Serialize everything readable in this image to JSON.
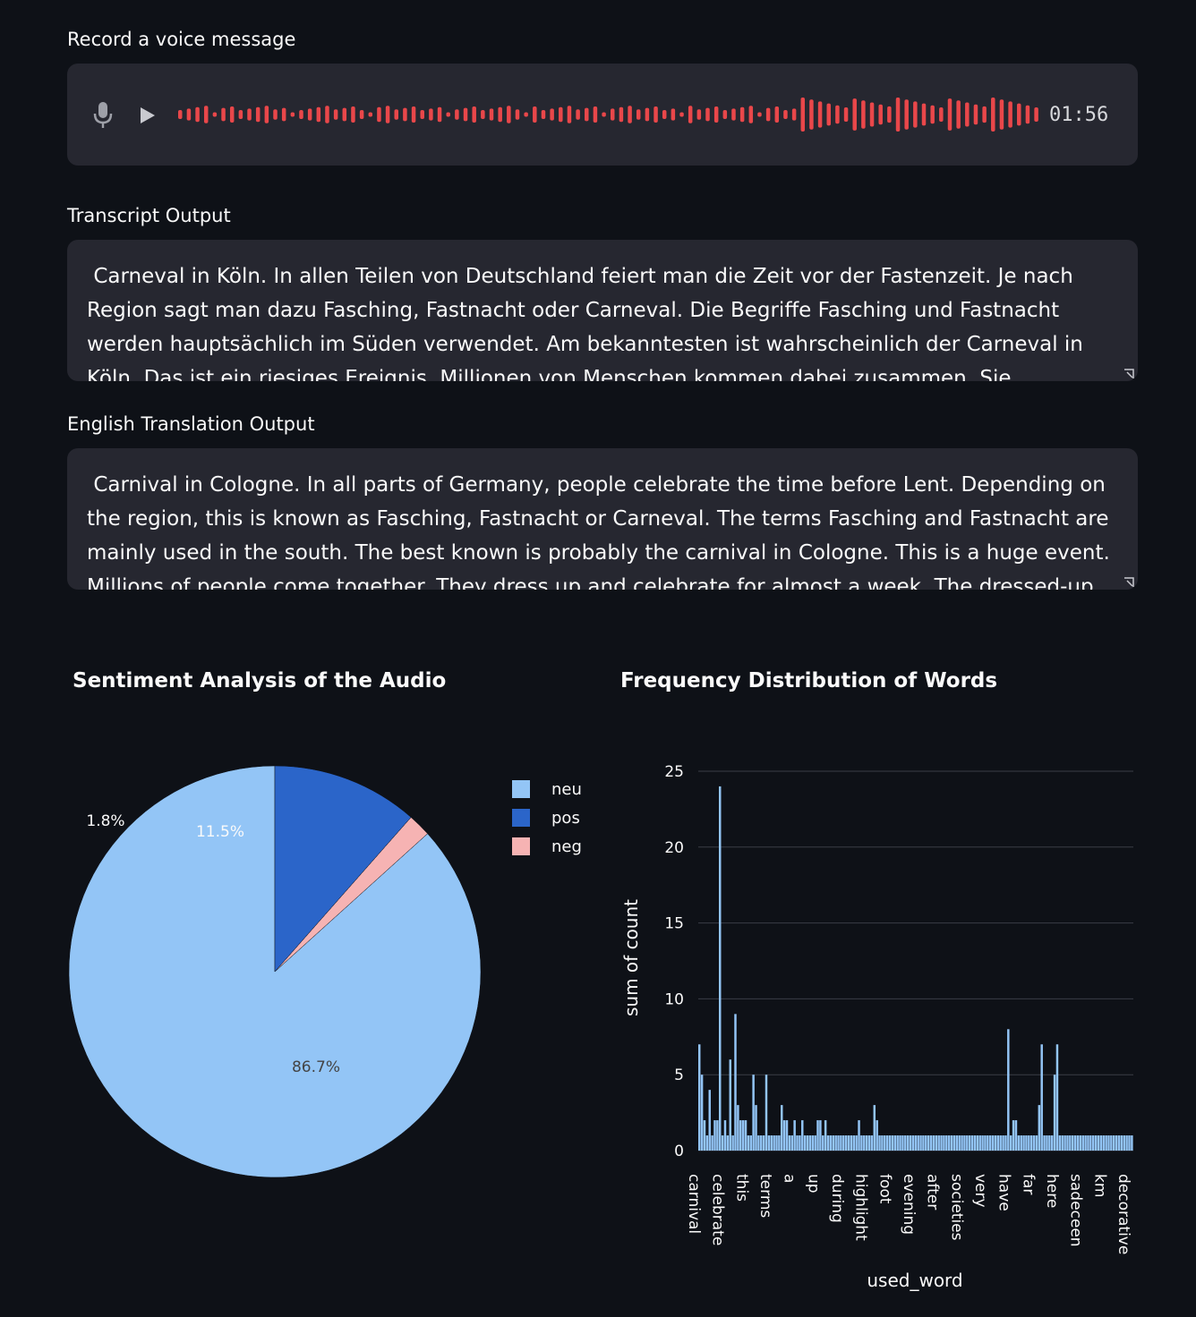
{
  "recorder": {
    "label": "Record a voice message",
    "duration": "01:56",
    "mic_icon": "microphone-icon",
    "play_icon": "play-icon",
    "wave_color": "#e9474a"
  },
  "transcript": {
    "label": "Transcript Output",
    "value": " Carneval in Köln. In allen Teilen von Deutschland feiert man die Zeit vor der Fastenzeit. Je nach Region sagt man dazu Fasching, Fastnacht oder Carneval. Die Begriffe Fasching und Fastnacht werden hauptsächlich im Süden verwendet. Am bekanntesten ist wahrscheinlich der Carneval in Köln. Das ist ein riesiges Ereignis. Millionen von Menschen kommen dabei zusammen. Sie verkleiden"
  },
  "translation": {
    "label": "English Translation Output",
    "value": " Carnival in Cologne. In all parts of Germany, people celebrate the time before Lent. Depending on the region, this is known as Fasching, Fastnacht or Carneval. The terms Fasching and Fastnacht are mainly used in the south. The best known is probably the carnival in Cologne. This is a huge event. Millions of people come together. They dress up and celebrate for almost a week. The dressed-up"
  },
  "chart_data": [
    {
      "type": "pie",
      "title": "Sentiment Analysis of the Audio",
      "labels": [
        "neu",
        "pos",
        "neg"
      ],
      "values": [
        86.7,
        11.5,
        1.8
      ],
      "value_labels": [
        "86.7%",
        "11.5%",
        "1.8%"
      ],
      "colors": [
        "#93c5f6",
        "#2b65c9",
        "#f6b3b3"
      ],
      "legend": "top-right"
    },
    {
      "type": "bar",
      "title": "Frequency Distribution of Words",
      "xlabel": "used_word",
      "ylabel": "sum of count",
      "ylim": [
        0,
        26
      ],
      "yticks": [
        0,
        5,
        10,
        15,
        20,
        25
      ],
      "grid": true,
      "color": "#93c5f6",
      "tick_labels": [
        "carnival",
        "celebrate",
        "this",
        "terms",
        "a",
        "up",
        "during",
        "highlight",
        "foot",
        "evening",
        "after",
        "societies",
        "very",
        "have",
        "far",
        "here",
        "sadeceen",
        "km",
        "decorative"
      ],
      "values": [
        7,
        5,
        2,
        1,
        4,
        1,
        2,
        2,
        24,
        1,
        2,
        1,
        6,
        1,
        9,
        3,
        2,
        2,
        2,
        1,
        1,
        5,
        3,
        1,
        1,
        1,
        5,
        1,
        1,
        1,
        1,
        1,
        3,
        2,
        2,
        1,
        1,
        2,
        1,
        1,
        2,
        1,
        1,
        1,
        1,
        1,
        2,
        2,
        1,
        2,
        1,
        1,
        1,
        1,
        1,
        1,
        1,
        1,
        1,
        1,
        1,
        1,
        2,
        1,
        1,
        1,
        1,
        1,
        3,
        2,
        1,
        1,
        1,
        1,
        1,
        1,
        1,
        1,
        1,
        1,
        1,
        1,
        1,
        1,
        1,
        1,
        1,
        1,
        1,
        1,
        1,
        1,
        1,
        1,
        1,
        1,
        1,
        1,
        1,
        1,
        1,
        1,
        1,
        1,
        1,
        1,
        1,
        1,
        1,
        1,
        1,
        1,
        1,
        1,
        1,
        1,
        1,
        1,
        1,
        1,
        8,
        1,
        2,
        2,
        1,
        1,
        1,
        1,
        1,
        1,
        1,
        1,
        3,
        7,
        1,
        1,
        1,
        1,
        5,
        7,
        1,
        1,
        1,
        1,
        1,
        1,
        1,
        1,
        1,
        1,
        1,
        1,
        1,
        1,
        1,
        1,
        1,
        1,
        1,
        1,
        1,
        1,
        1,
        1,
        1,
        1,
        1,
        1,
        1
      ]
    }
  ]
}
